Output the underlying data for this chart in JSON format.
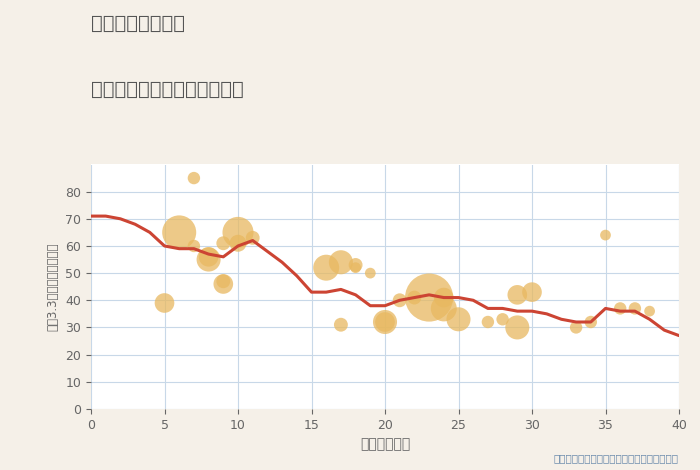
{
  "title_line1": "千葉県野田市横内",
  "title_line2": "築年数別中古マンション価格",
  "xlabel": "築年数（年）",
  "ylabel": "坪（3.3㎡）単価（万円）",
  "annotation": "円の大きさは、取引のあった物件面積を示す",
  "background_color": "#f5f0e8",
  "plot_bg_color": "#ffffff",
  "xlim": [
    0,
    40
  ],
  "ylim": [
    0,
    90
  ],
  "xticks": [
    0,
    5,
    10,
    15,
    20,
    25,
    30,
    35,
    40
  ],
  "yticks": [
    0,
    10,
    20,
    30,
    40,
    50,
    60,
    70,
    80
  ],
  "line_color": "#cc4433",
  "line_points_x": [
    0,
    1,
    2,
    3,
    4,
    5,
    6,
    7,
    8,
    9,
    10,
    11,
    12,
    13,
    14,
    15,
    16,
    17,
    18,
    19,
    20,
    21,
    22,
    23,
    24,
    25,
    26,
    27,
    28,
    29,
    30,
    31,
    32,
    33,
    34,
    35,
    36,
    37,
    38,
    39,
    40
  ],
  "line_points_y": [
    71,
    71,
    70,
    68,
    65,
    60,
    59,
    59,
    57,
    56,
    60,
    62,
    58,
    54,
    49,
    43,
    43,
    44,
    42,
    38,
    38,
    40,
    41,
    42,
    41,
    41,
    40,
    37,
    37,
    36,
    36,
    35,
    33,
    32,
    32,
    37,
    36,
    36,
    33,
    29,
    27
  ],
  "scatter_x": [
    5,
    6,
    7,
    7,
    8,
    8,
    9,
    9,
    9,
    10,
    10,
    11,
    16,
    17,
    17,
    18,
    18,
    19,
    20,
    20,
    21,
    22,
    23,
    24,
    24,
    25,
    27,
    28,
    29,
    29,
    30,
    33,
    34,
    35,
    36,
    37,
    38
  ],
  "scatter_y": [
    39,
    65,
    85,
    60,
    56,
    55,
    61,
    46,
    47,
    61,
    65,
    63,
    52,
    54,
    31,
    53,
    52,
    50,
    32,
    32,
    40,
    41,
    41,
    41,
    37,
    33,
    32,
    33,
    42,
    30,
    43,
    30,
    32,
    64,
    37,
    37,
    36
  ],
  "scatter_size": [
    200,
    600,
    80,
    80,
    200,
    300,
    100,
    200,
    100,
    150,
    500,
    100,
    350,
    300,
    100,
    100,
    60,
    60,
    300,
    200,
    100,
    100,
    1200,
    200,
    350,
    300,
    80,
    80,
    200,
    300,
    200,
    80,
    80,
    60,
    80,
    80,
    60
  ],
  "scatter_color": "#e8b860",
  "scatter_alpha": 0.75,
  "grid_color": "#c8d8e8",
  "title_color": "#555555",
  "axis_label_color": "#666666",
  "annotation_color": "#6688aa"
}
